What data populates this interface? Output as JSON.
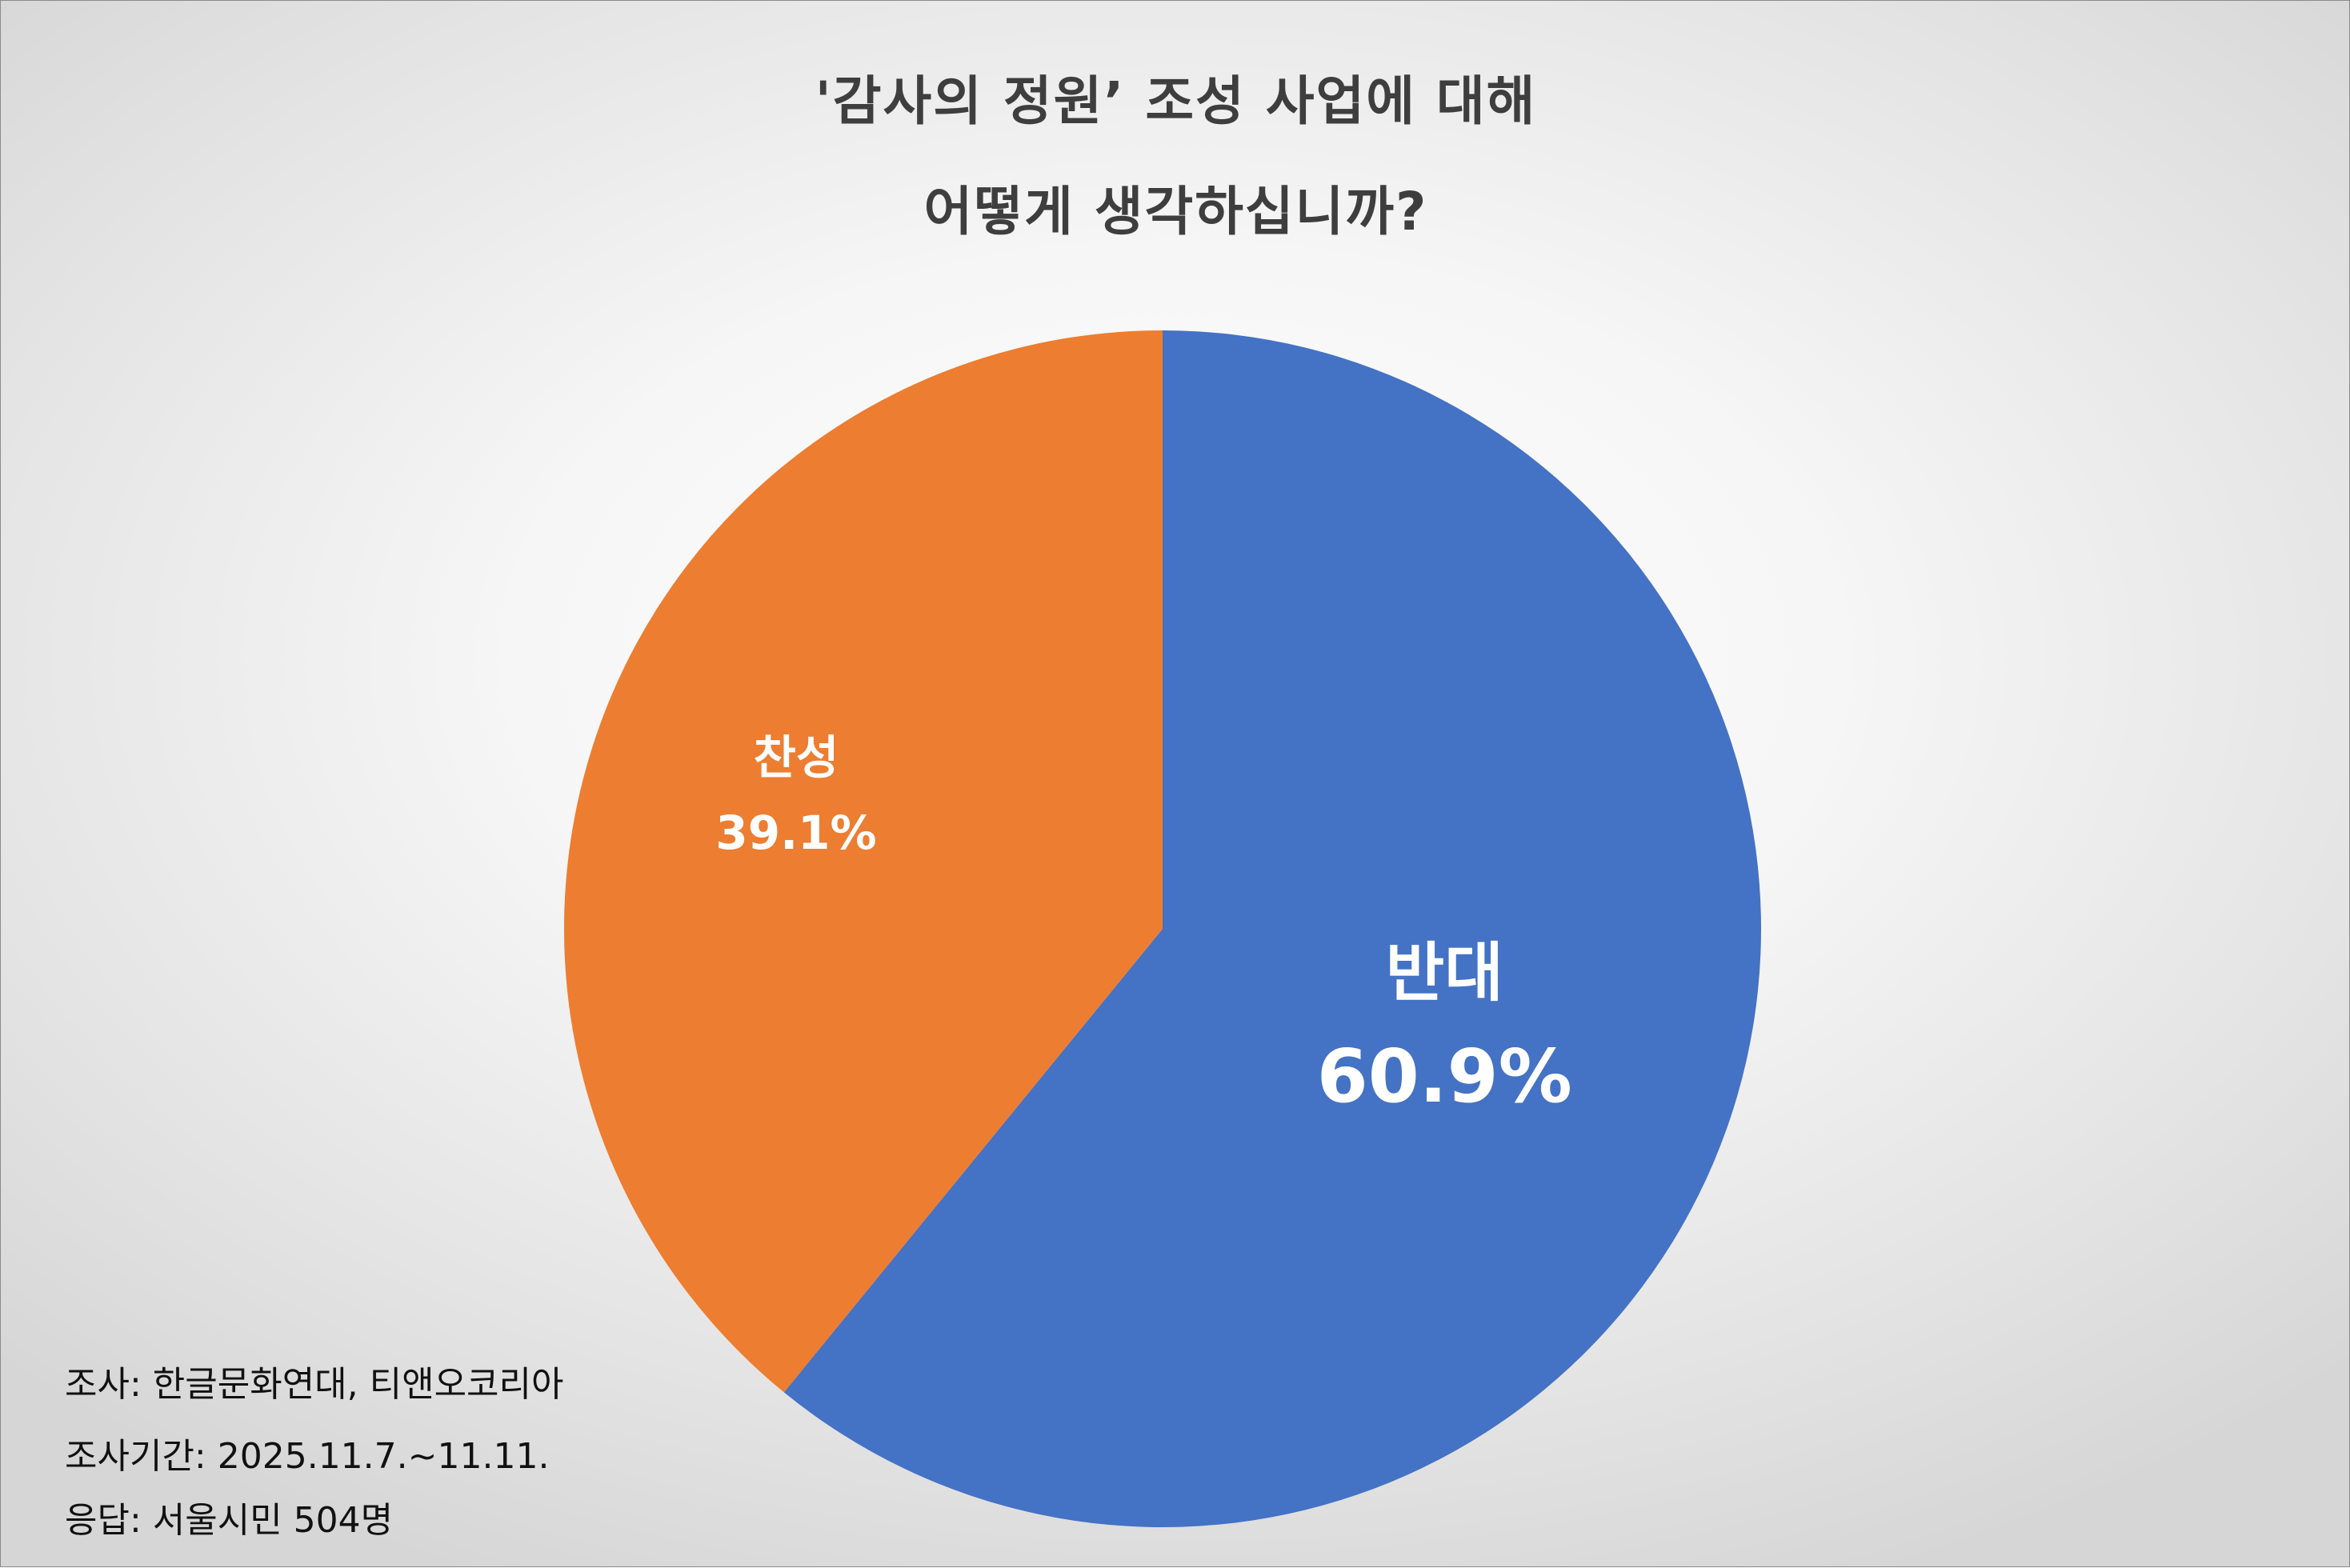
{
  "chart_data": {
    "type": "pie",
    "title_lines": [
      "'감사의 정원’ 조성 사업에 대해",
      "어떻게 생각하십니까?"
    ],
    "slices": [
      {
        "label": "반대",
        "value": 60.9,
        "value_label": "60.9%",
        "color": "#4472C4"
      },
      {
        "label": "찬성",
        "value": 39.1,
        "value_label": "39.1%",
        "color": "#ED7D31"
      }
    ],
    "start_angle": "12 o'clock",
    "direction": "clockwise",
    "label_color": "#FFFFFF",
    "legend": "none"
  },
  "footnotes": {
    "survey": "조사: 한글문화연대, 티앤오코리아",
    "period": "조사기간: 2025.11.7.~11.11.",
    "respondents": "응답: 서울시민 504명"
  }
}
